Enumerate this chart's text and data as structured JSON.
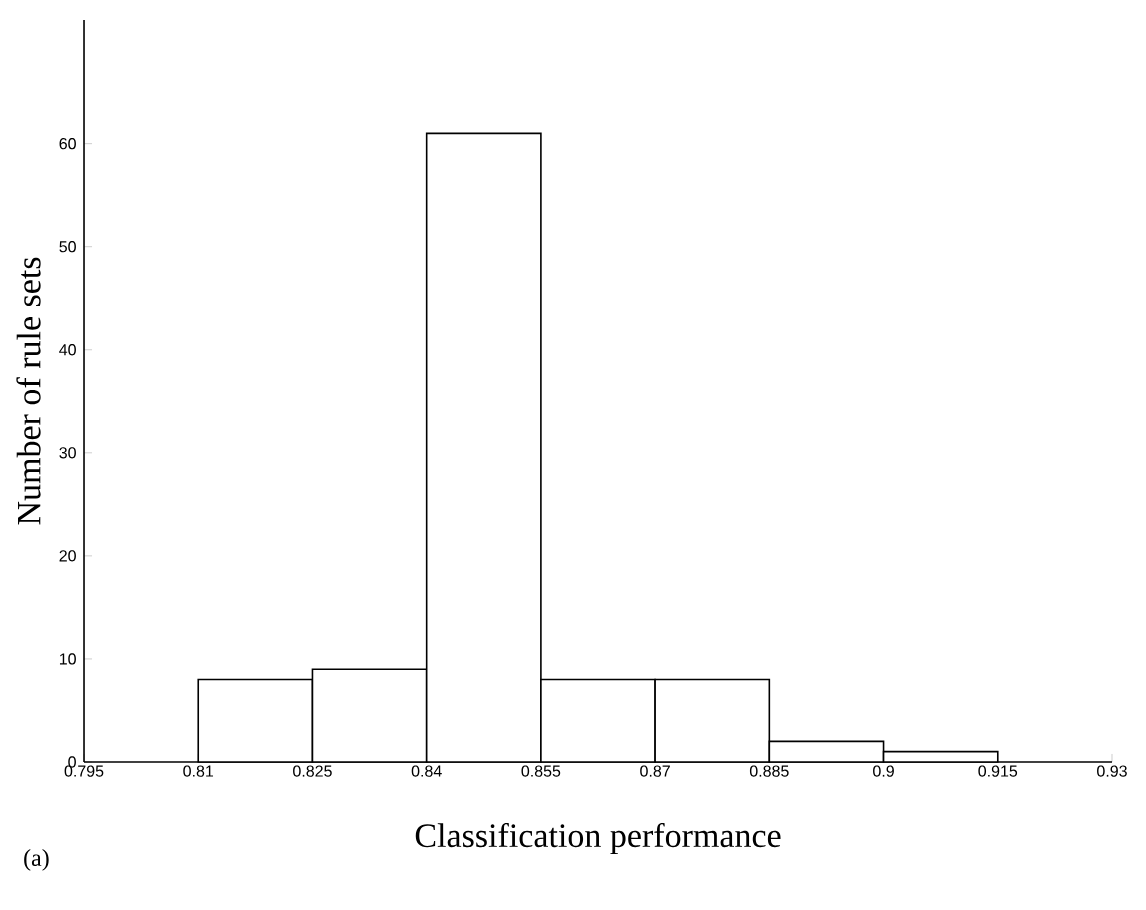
{
  "chart_data": {
    "type": "histogram",
    "xlabel": "Classification performance",
    "ylabel": "Number of rule sets",
    "annotations": [
      "(a)"
    ],
    "bins": [
      0.81,
      0.825,
      0.84,
      0.855,
      0.87,
      0.885,
      0.9,
      0.915
    ],
    "values": [
      8,
      9,
      61,
      8,
      8,
      2,
      1
    ],
    "color": "#ffffff",
    "xlim": [
      0.795,
      0.93
    ],
    "ylim": [
      0,
      72
    ],
    "xticks": [
      0.795,
      0.81,
      0.825,
      0.84,
      0.855,
      0.87,
      0.885,
      0.9,
      0.915,
      0.93
    ],
    "yticks": [
      0,
      10,
      20,
      30,
      40,
      50,
      60
    ],
    "grid": false
  }
}
